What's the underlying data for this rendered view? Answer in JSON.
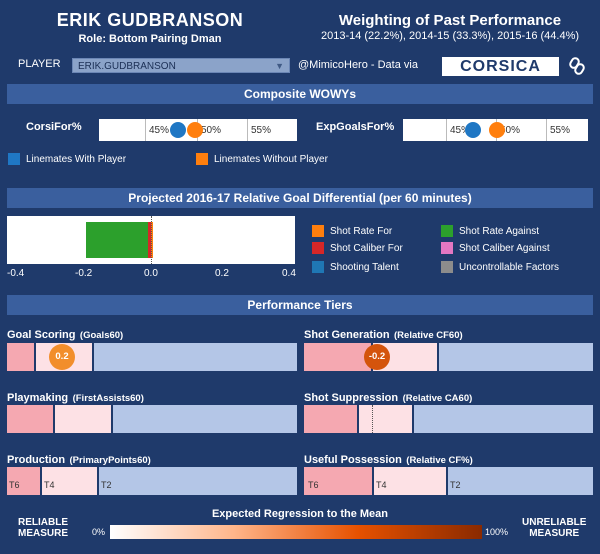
{
  "header": {
    "player_name": "ERIK GUDBRANSON",
    "role": "Role: Bottom Pairing Dman",
    "weighting_title": "Weighting of Past Performance",
    "weighting_sub": "2013-14 (22.2%), 2014-15 (33.3%), 2015-16 (44.4%)"
  },
  "selector": {
    "label": "PLAYER",
    "value": "ERIK.GUDBRANSON",
    "credit": "@MimicoHero - Data via",
    "logo_text": "CORSICA",
    "link_icon": "link-icon"
  },
  "wowy": {
    "title": "Composite WOWYs",
    "metrics": [
      {
        "label": "CorsiFor%",
        "ticks": [
          "45%",
          "50%",
          "55%"
        ],
        "with": 48.6,
        "without": 49.8
      },
      {
        "label": "ExpGoalsFor%",
        "ticks": [
          "45%",
          "50%",
          "55%"
        ],
        "with": 46.3,
        "without": 49.4
      }
    ],
    "legend": [
      {
        "label": "Linemates With Player",
        "color": "#1f77c4"
      },
      {
        "label": "Linemates Without Player",
        "color": "#ff7f0e"
      }
    ]
  },
  "projection": {
    "title": "Projected 2016-17 Relative Goal Differential (per 60 minutes)",
    "axis_ticks": [
      "-0.4",
      "-0.2",
      "0.0",
      "0.2",
      "0.4"
    ],
    "components": [
      {
        "name": "Shot Rate Against",
        "color": "#2ca02c",
        "start": -0.18,
        "end": -0.005
      },
      {
        "name": "Shot Caliber For",
        "color": "#d62728",
        "start": -0.005,
        "end": 0.0
      },
      {
        "name": "Shot Rate For",
        "color": "#ff7f0e",
        "start": 0.0,
        "end": 0.004
      }
    ],
    "legend": [
      {
        "label": "Shot Rate For",
        "color": "#ff7f0e"
      },
      {
        "label": "Shot Rate Against",
        "color": "#2ca02c"
      },
      {
        "label": "Shot Caliber For",
        "color": "#d62728"
      },
      {
        "label": "Shot Caliber Against",
        "color": "#e377c2"
      },
      {
        "label": "Shooting Talent",
        "color": "#1f77b4"
      },
      {
        "label": "Uncontrollable Factors",
        "color": "#8c8c8c"
      }
    ]
  },
  "tiers": {
    "title": "Performance Tiers",
    "items": [
      {
        "title": "Goal Scoring",
        "sub": "(Goals60)",
        "marker": "0.2",
        "marker_color": "#f28e2b"
      },
      {
        "title": "Shot Generation",
        "sub": "(Relative CF60)",
        "marker": "-0.2",
        "marker_color": "#d4540c"
      },
      {
        "title": "Playmaking",
        "sub": "(FirstAssists60)"
      },
      {
        "title": "Shot Suppression",
        "sub": "(Relative CA60)"
      },
      {
        "title": "Production",
        "sub": "(PrimaryPoints60)",
        "labels": [
          "T6",
          "T4",
          "T2"
        ]
      },
      {
        "title": "Useful Possession",
        "sub": "(Relative CF%)",
        "labels": [
          "T6",
          "T4",
          "T2"
        ]
      }
    ]
  },
  "regression": {
    "title": "Expected Regression to the Mean",
    "left_label_1": "RELIABLE",
    "left_label_2": "MEASURE",
    "right_label_1": "UNRELIABLE",
    "right_label_2": "MEASURE",
    "min": "0%",
    "max": "100%"
  }
}
